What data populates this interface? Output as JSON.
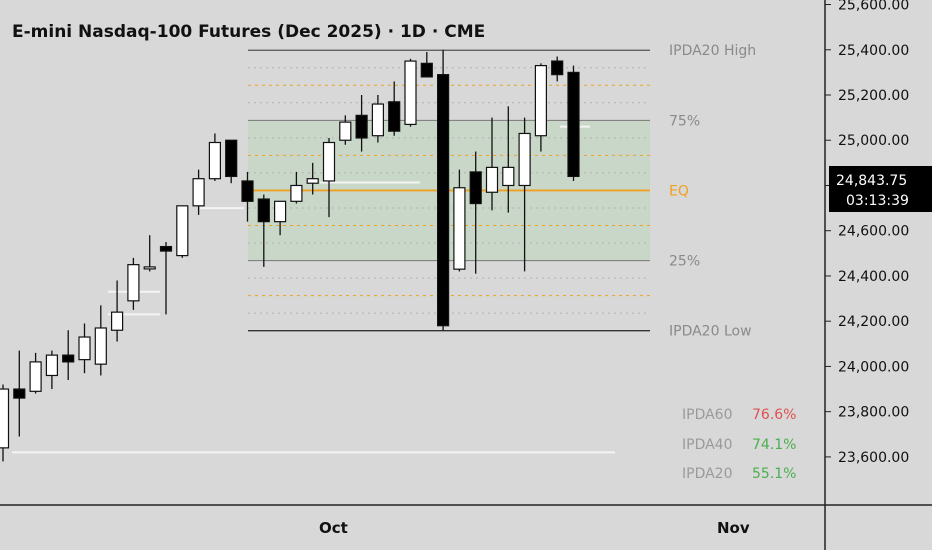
{
  "header": {
    "title": "E-mini Nasdaq-100 Futures (Dec 2025) · 1D · CME"
  },
  "price_axis": {
    "ticks": [
      "25,600.00",
      "25,400.00",
      "25,200.00",
      "25,000.00",
      "24,800.00",
      "24,600.00",
      "24,400.00",
      "24,200.00",
      "24,000.00",
      "23,800.00",
      "23,600.00"
    ],
    "last_price": "24,843.75",
    "countdown": "03:13:39"
  },
  "time_axis": {
    "labels": [
      "Oct",
      "Nov"
    ]
  },
  "ipda_levels": {
    "high_label": "IPDA20 High",
    "q75_label": "75%",
    "eq_label": "EQ",
    "q25_label": "25%",
    "low_label": "IPDA20 Low"
  },
  "stats": [
    {
      "name": "IPDA60",
      "value": "76.6%",
      "color": "#e05050"
    },
    {
      "name": "IPDA40",
      "value": "74.1%",
      "color": "#4caf50"
    },
    {
      "name": "IPDA20",
      "value": "55.1%",
      "color": "#4caf50"
    }
  ],
  "colors": {
    "up": "#ffffff",
    "down": "#000000",
    "zone": "#c9d7c9",
    "eq": "#f0a020",
    "quarter_dash": "#f0a020"
  },
  "chart_data": {
    "type": "candlestick",
    "title": "E-mini Nasdaq-100 Futures (Dec 2025) · 1D · CME",
    "ylim": [
      23520,
      25620
    ],
    "ipda20_high": 25398,
    "ipda20_low": 24158,
    "eq": 24778,
    "q75": 25088,
    "q25": 24468,
    "last_price": 24843.75,
    "candles": [
      {
        "o": 23640,
        "h": 23920,
        "l": 23580,
        "c": 23900
      },
      {
        "o": 23900,
        "h": 24070,
        "l": 23690,
        "c": 23860
      },
      {
        "o": 23890,
        "h": 24060,
        "l": 23880,
        "c": 24020
      },
      {
        "o": 23960,
        "h": 24070,
        "l": 23900,
        "c": 24050
      },
      {
        "o": 24050,
        "h": 24160,
        "l": 23940,
        "c": 24020
      },
      {
        "o": 24030,
        "h": 24190,
        "l": 23970,
        "c": 24130
      },
      {
        "o": 24010,
        "h": 24270,
        "l": 23960,
        "c": 24170
      },
      {
        "o": 24160,
        "h": 24380,
        "l": 24110,
        "c": 24240
      },
      {
        "o": 24290,
        "h": 24480,
        "l": 24250,
        "c": 24450
      },
      {
        "o": 24440,
        "h": 24580,
        "l": 24420,
        "c": 24440
      },
      {
        "o": 24530,
        "h": 24550,
        "l": 24230,
        "c": 24510
      },
      {
        "o": 24490,
        "h": 24710,
        "l": 24480,
        "c": 24710
      },
      {
        "o": 24710,
        "h": 24870,
        "l": 24670,
        "c": 24830
      },
      {
        "o": 24830,
        "h": 25030,
        "l": 24820,
        "c": 24990
      },
      {
        "o": 25000,
        "h": 25000,
        "l": 24810,
        "c": 24840
      },
      {
        "o": 24820,
        "h": 24860,
        "l": 24640,
        "c": 24730
      },
      {
        "o": 24740,
        "h": 24760,
        "l": 24440,
        "c": 24640
      },
      {
        "o": 24640,
        "h": 24730,
        "l": 24580,
        "c": 24730
      },
      {
        "o": 24730,
        "h": 24860,
        "l": 24720,
        "c": 24800
      },
      {
        "o": 24810,
        "h": 24900,
        "l": 24760,
        "c": 24830
      },
      {
        "o": 24820,
        "h": 25010,
        "l": 24660,
        "c": 24990
      },
      {
        "o": 25000,
        "h": 25110,
        "l": 24980,
        "c": 25080
      },
      {
        "o": 25110,
        "h": 25200,
        "l": 24950,
        "c": 25010
      },
      {
        "o": 25020,
        "h": 25200,
        "l": 24990,
        "c": 25160
      },
      {
        "o": 25170,
        "h": 25260,
        "l": 25020,
        "c": 25040
      },
      {
        "o": 25070,
        "h": 25360,
        "l": 25060,
        "c": 25350
      },
      {
        "o": 25340,
        "h": 25390,
        "l": 25280,
        "c": 25280
      },
      {
        "o": 25290,
        "h": 25400,
        "l": 24160,
        "c": 24180
      },
      {
        "o": 24430,
        "h": 24870,
        "l": 24420,
        "c": 24790
      },
      {
        "o": 24860,
        "h": 24950,
        "l": 24410,
        "c": 24720
      },
      {
        "o": 24770,
        "h": 25100,
        "l": 24690,
        "c": 24880
      },
      {
        "o": 24800,
        "h": 25150,
        "l": 24680,
        "c": 24880
      },
      {
        "o": 24800,
        "h": 25100,
        "l": 24420,
        "c": 25030
      },
      {
        "o": 25020,
        "h": 25340,
        "l": 24950,
        "c": 25330
      },
      {
        "o": 25350,
        "h": 25370,
        "l": 25260,
        "c": 25290
      },
      {
        "o": 25300,
        "h": 25330,
        "l": 24820,
        "c": 24840
      }
    ]
  }
}
